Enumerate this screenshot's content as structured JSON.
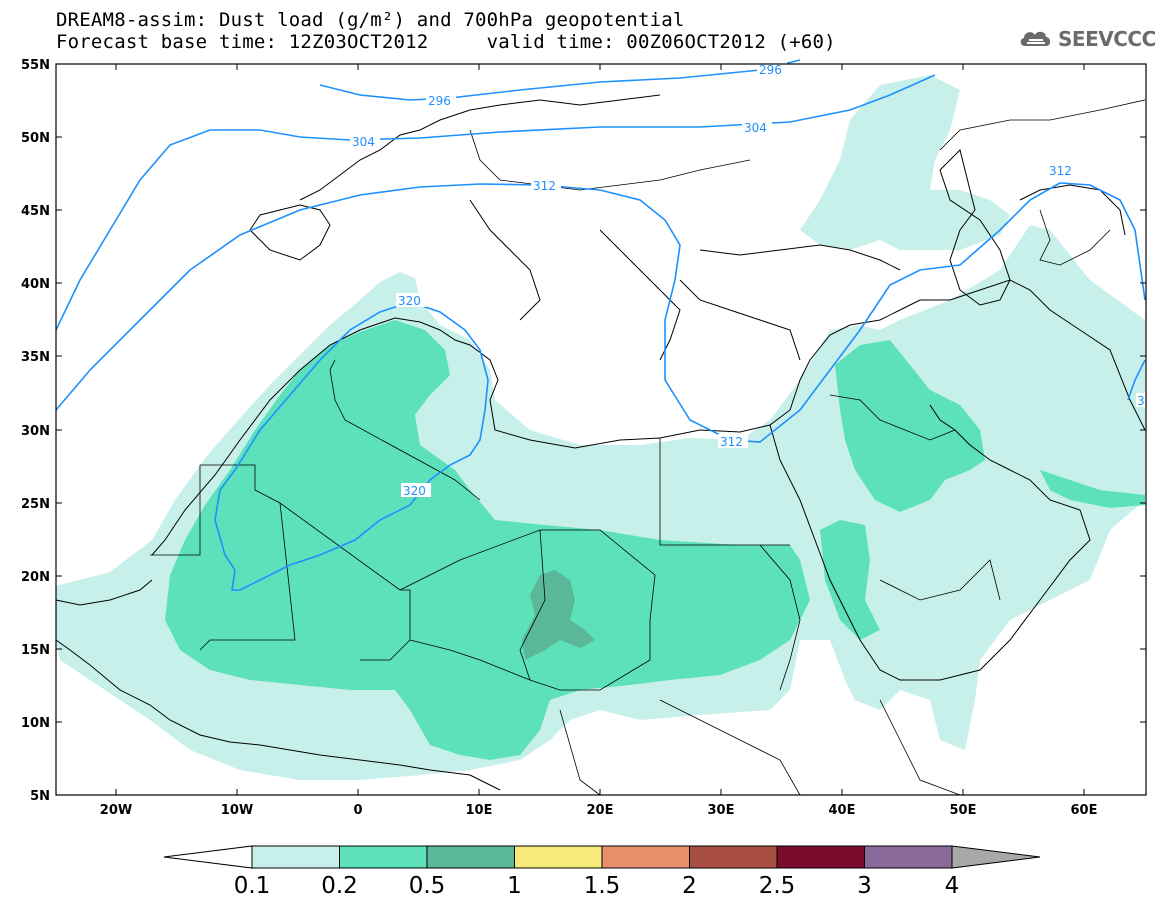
{
  "title_line1": "DREAM8-assim: Dust load (g/m²) and 700hPa geopotential",
  "title_line2": "Forecast base time: 12Z03OCT2012     valid time: 00Z06OCT2012 (+60)",
  "logo_text": "SEEVCCC",
  "axes": {
    "lat_labels": [
      "55N",
      "50N",
      "45N",
      "40N",
      "35N",
      "30N",
      "25N",
      "20N",
      "15N",
      "10N",
      "5N"
    ],
    "lon_labels": [
      "20W",
      "10W",
      "0",
      "10E",
      "20E",
      "30E",
      "40E",
      "50E",
      "60E"
    ]
  },
  "contour_labels": [
    "296",
    "296",
    "304",
    "304",
    "312",
    "312",
    "312",
    "320",
    "320",
    "3"
  ],
  "colorbar": {
    "ticks": [
      "0.1",
      "0.2",
      "0.5",
      "1",
      "1.5",
      "2",
      "2.5",
      "3",
      "4"
    ],
    "colors": [
      "#c8f0ea",
      "#5de1bb",
      "#5ab898",
      "#f5ea7a",
      "#e8906c",
      "#a84e42",
      "#7a0c2c",
      "#8a6a9a"
    ],
    "over_color": "#a9a9a9",
    "under_color": "#ffffff"
  },
  "colors": {
    "contour": "#1e90ff",
    "coast": "#000000",
    "frame": "#000000"
  }
}
